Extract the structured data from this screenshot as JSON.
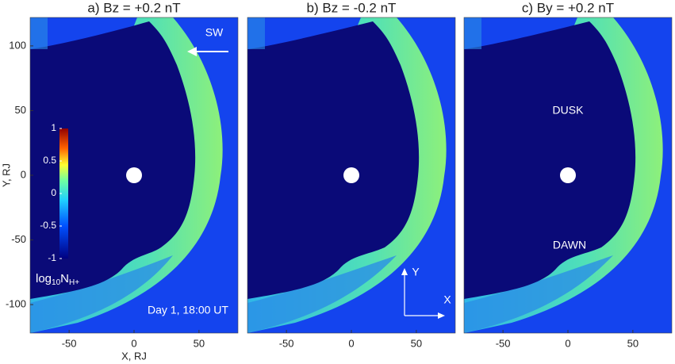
{
  "chart_data": [
    {
      "type": "image",
      "title": "a) Bz = +0.2 nT",
      "xlabel": "X, RJ",
      "ylabel": "Y, RJ",
      "xlim": [
        -80,
        80
      ],
      "ylim": [
        -122,
        122
      ],
      "xticks": [
        -50,
        0,
        50
      ],
      "yticks": [
        -100,
        -50,
        0,
        50,
        100
      ],
      "annotations": [
        "SW",
        "Day 1, 18:00 UT"
      ],
      "colorbar": {
        "label_parts": [
          "log",
          "10",
          "N",
          "H+"
        ],
        "clim": [
          -1,
          1
        ],
        "ticks": [
          -1,
          -0.5,
          0,
          0.5,
          1
        ]
      }
    },
    {
      "type": "image",
      "title": "b) Bz = -0.2 nT",
      "xlim": [
        -80,
        80
      ],
      "ylim": [
        -122,
        122
      ],
      "xticks": [
        -50,
        0,
        50
      ],
      "annotations": [
        "Y",
        "X"
      ]
    },
    {
      "type": "image",
      "title": "c) By = +0.2 nT",
      "xlim": [
        -80,
        80
      ],
      "ylim": [
        -122,
        122
      ],
      "xticks": [
        -50,
        0,
        50
      ],
      "annotations": [
        "DUSK",
        "DAWN"
      ]
    }
  ]
}
